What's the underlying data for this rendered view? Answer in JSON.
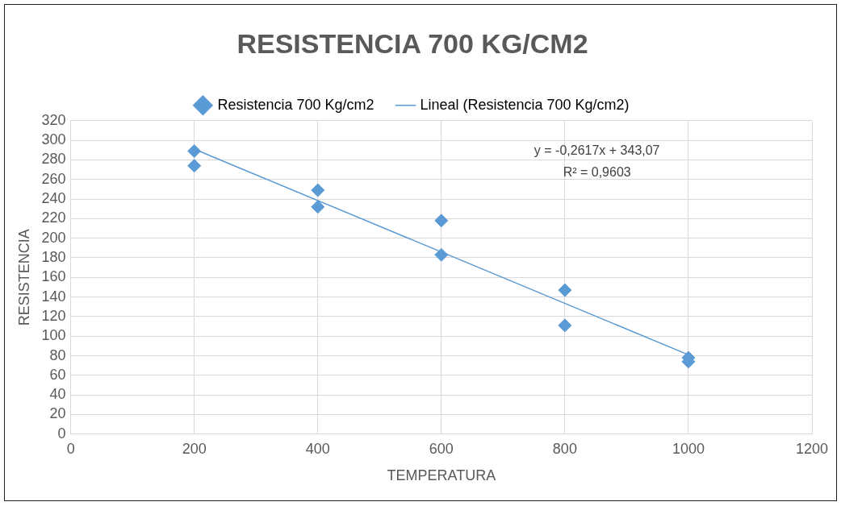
{
  "chart_data": {
    "type": "scatter",
    "title": "RESISTENCIA 700 KG/CM2",
    "xlabel": "TEMPERATURA",
    "ylabel": "RESISTENCIA",
    "xlim": [
      0,
      1200
    ],
    "xticks": [
      0,
      200,
      400,
      600,
      800,
      1000,
      1200
    ],
    "ylim": [
      0,
      320
    ],
    "yticks": [
      0,
      20,
      40,
      60,
      80,
      100,
      120,
      140,
      160,
      180,
      200,
      220,
      240,
      260,
      280,
      300,
      320
    ],
    "grid": true,
    "legend": "top",
    "marker": "diamond",
    "annotations": [
      "y = -0,2617x + 343,07",
      "R² = 0,9603"
    ],
    "series": [
      {
        "name": "Resistencia 700 Kg/cm2",
        "color": "#5b9bd5",
        "x": [
          200,
          200,
          400,
          400,
          600,
          600,
          800,
          800,
          1000,
          1000
        ],
        "values": [
          289,
          274,
          249,
          232,
          218,
          183,
          147,
          111,
          78,
          74
        ]
      },
      {
        "name": "Lineal (Resistencia 700 Kg/cm2)",
        "type": "line",
        "color": "#5b9bd5",
        "marker": "none",
        "line_style": "solid",
        "x": [
          200,
          1000
        ],
        "values": [
          291,
          81
        ]
      }
    ]
  }
}
